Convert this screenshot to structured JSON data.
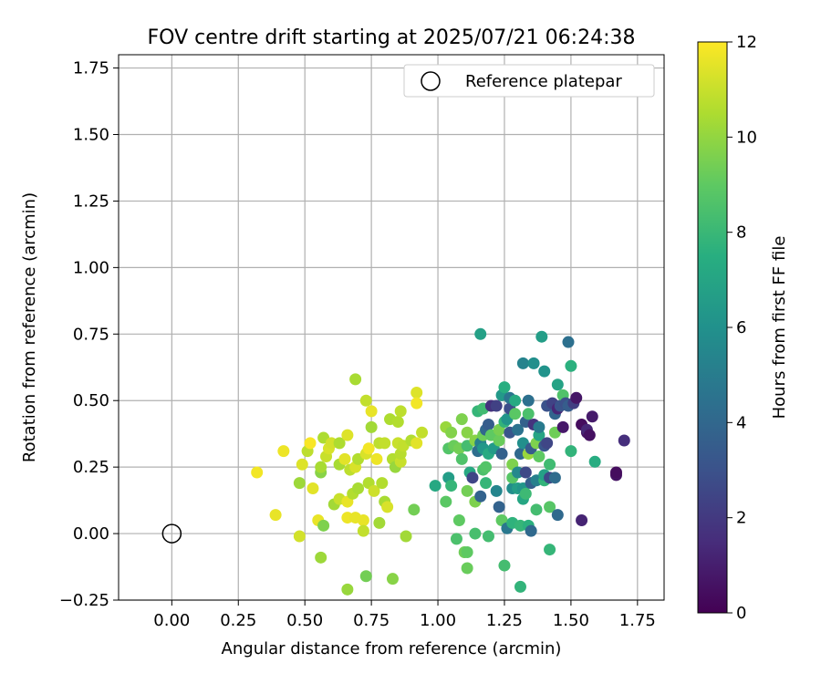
{
  "chart_data": {
    "type": "scatter",
    "title": "FOV centre drift starting at 2025/07/21 06:24:38",
    "xlabel": "Angular distance from reference (arcmin)",
    "ylabel": "Rotation from reference (arcmin)",
    "xlim": [
      -0.2,
      1.85
    ],
    "ylim": [
      -0.25,
      1.8
    ],
    "xticks": [
      "0.00",
      "0.25",
      "0.50",
      "0.75",
      "1.00",
      "1.25",
      "1.50",
      "1.75"
    ],
    "yticks": [
      "-0.25",
      "0.00",
      "0.25",
      "0.50",
      "0.75",
      "1.00",
      "1.25",
      "1.50",
      "1.75"
    ],
    "grid": true,
    "legend": {
      "position": "top-right",
      "label": "Reference platepar"
    },
    "reference_point": {
      "x": 0.0,
      "y": 0.0
    },
    "colorbar": {
      "label": "Hours from first FF file",
      "min": 0,
      "max": 12,
      "ticks": [
        "0",
        "2",
        "4",
        "6",
        "8",
        "10",
        "12"
      ],
      "colormap": "viridis"
    },
    "points": [
      {
        "x": 0.32,
        "y": 0.23,
        "c": 11.8
      },
      {
        "x": 0.39,
        "y": 0.07,
        "c": 11.6
      },
      {
        "x": 0.42,
        "y": 0.31,
        "c": 11.7
      },
      {
        "x": 0.48,
        "y": -0.01,
        "c": 11.2
      },
      {
        "x": 0.48,
        "y": 0.19,
        "c": 10.2
      },
      {
        "x": 0.49,
        "y": 0.26,
        "c": 11.4
      },
      {
        "x": 0.51,
        "y": 0.31,
        "c": 10.8
      },
      {
        "x": 0.52,
        "y": 0.34,
        "c": 11.9
      },
      {
        "x": 0.53,
        "y": 0.17,
        "c": 11.5
      },
      {
        "x": 0.55,
        "y": 0.05,
        "c": 11.6
      },
      {
        "x": 0.56,
        "y": 0.23,
        "c": 9.8
      },
      {
        "x": 0.56,
        "y": 0.25,
        "c": 10.4
      },
      {
        "x": 0.56,
        "y": -0.09,
        "c": 10.2
      },
      {
        "x": 0.57,
        "y": 0.36,
        "c": 10.5
      },
      {
        "x": 0.57,
        "y": 0.03,
        "c": 9.6
      },
      {
        "x": 0.58,
        "y": 0.29,
        "c": 11.0
      },
      {
        "x": 0.59,
        "y": 0.32,
        "c": 11.3
      },
      {
        "x": 0.6,
        "y": 0.34,
        "c": 11.2
      },
      {
        "x": 0.61,
        "y": 0.11,
        "c": 10.3
      },
      {
        "x": 0.63,
        "y": 0.34,
        "c": 10.5
      },
      {
        "x": 0.63,
        "y": 0.26,
        "c": 10.4
      },
      {
        "x": 0.63,
        "y": 0.13,
        "c": 11.0
      },
      {
        "x": 0.65,
        "y": 0.28,
        "c": 11.5
      },
      {
        "x": 0.66,
        "y": 0.37,
        "c": 11.4
      },
      {
        "x": 0.66,
        "y": 0.12,
        "c": 11.6
      },
      {
        "x": 0.66,
        "y": 0.06,
        "c": 11.7
      },
      {
        "x": 0.66,
        "y": -0.21,
        "c": 10.1
      },
      {
        "x": 0.67,
        "y": 0.24,
        "c": 10.8
      },
      {
        "x": 0.68,
        "y": 0.15,
        "c": 10.6
      },
      {
        "x": 0.69,
        "y": 0.06,
        "c": 11.6
      },
      {
        "x": 0.69,
        "y": 0.58,
        "c": 10.4
      },
      {
        "x": 0.69,
        "y": 0.25,
        "c": 11.3
      },
      {
        "x": 0.7,
        "y": 0.28,
        "c": 10.6
      },
      {
        "x": 0.7,
        "y": 0.17,
        "c": 10.4
      },
      {
        "x": 0.72,
        "y": 0.05,
        "c": 11.6
      },
      {
        "x": 0.72,
        "y": 0.01,
        "c": 10.9
      },
      {
        "x": 0.73,
        "y": 0.3,
        "c": 11.3
      },
      {
        "x": 0.73,
        "y": 0.5,
        "c": 10.9
      },
      {
        "x": 0.73,
        "y": -0.16,
        "c": 9.4
      },
      {
        "x": 0.74,
        "y": 0.32,
        "c": 11.8
      },
      {
        "x": 0.74,
        "y": 0.19,
        "c": 10.6
      },
      {
        "x": 0.75,
        "y": 0.4,
        "c": 10.3
      },
      {
        "x": 0.75,
        "y": 0.46,
        "c": 11.6
      },
      {
        "x": 0.76,
        "y": 0.16,
        "c": 11.1
      },
      {
        "x": 0.77,
        "y": 0.28,
        "c": 11.7
      },
      {
        "x": 0.78,
        "y": 0.04,
        "c": 10.3
      },
      {
        "x": 0.78,
        "y": 0.34,
        "c": 10.8
      },
      {
        "x": 0.79,
        "y": 0.19,
        "c": 10.6
      },
      {
        "x": 0.8,
        "y": 0.12,
        "c": 10.4
      },
      {
        "x": 0.8,
        "y": 0.34,
        "c": 10.9
      },
      {
        "x": 0.81,
        "y": 0.1,
        "c": 11.3
      },
      {
        "x": 0.82,
        "y": 0.43,
        "c": 10.5
      },
      {
        "x": 0.83,
        "y": 0.28,
        "c": 10.6
      },
      {
        "x": 0.83,
        "y": -0.17,
        "c": 9.8
      },
      {
        "x": 0.84,
        "y": 0.25,
        "c": 10.1
      },
      {
        "x": 0.85,
        "y": 0.34,
        "c": 11.0
      },
      {
        "x": 0.85,
        "y": 0.42,
        "c": 10.6
      },
      {
        "x": 0.86,
        "y": 0.46,
        "c": 10.8
      },
      {
        "x": 0.86,
        "y": 0.27,
        "c": 11.0
      },
      {
        "x": 0.86,
        "y": 0.3,
        "c": 10.7
      },
      {
        "x": 0.87,
        "y": 0.33,
        "c": 10.9
      },
      {
        "x": 0.88,
        "y": -0.01,
        "c": 10.3
      },
      {
        "x": 0.9,
        "y": 0.35,
        "c": 10.6
      },
      {
        "x": 0.91,
        "y": 0.09,
        "c": 9.4
      },
      {
        "x": 0.92,
        "y": 0.53,
        "c": 11.4
      },
      {
        "x": 0.92,
        "y": 0.49,
        "c": 11.8
      },
      {
        "x": 0.92,
        "y": 0.34,
        "c": 11.5
      },
      {
        "x": 0.94,
        "y": 0.38,
        "c": 10.9
      },
      {
        "x": 0.99,
        "y": 0.18,
        "c": 7.2
      },
      {
        "x": 1.03,
        "y": 0.4,
        "c": 10.1
      },
      {
        "x": 1.03,
        "y": 0.12,
        "c": 8.9
      },
      {
        "x": 1.04,
        "y": 0.21,
        "c": 6.6
      },
      {
        "x": 1.04,
        "y": 0.32,
        "c": 8.7
      },
      {
        "x": 1.05,
        "y": 0.38,
        "c": 9.7
      },
      {
        "x": 1.05,
        "y": 0.18,
        "c": 7.9
      },
      {
        "x": 1.06,
        "y": 0.33,
        "c": 9.2
      },
      {
        "x": 1.07,
        "y": -0.02,
        "c": 8.5
      },
      {
        "x": 1.08,
        "y": 0.32,
        "c": 9.4
      },
      {
        "x": 1.08,
        "y": 0.05,
        "c": 9.0
      },
      {
        "x": 1.09,
        "y": 0.43,
        "c": 9.6
      },
      {
        "x": 1.09,
        "y": 0.28,
        "c": 8.6
      },
      {
        "x": 1.1,
        "y": -0.07,
        "c": 9.3
      },
      {
        "x": 1.11,
        "y": 0.33,
        "c": 8.3
      },
      {
        "x": 1.11,
        "y": -0.13,
        "c": 9.2
      },
      {
        "x": 1.11,
        "y": 0.16,
        "c": 9.4
      },
      {
        "x": 1.11,
        "y": 0.38,
        "c": 9.8
      },
      {
        "x": 1.11,
        "y": -0.07,
        "c": 9.0
      },
      {
        "x": 1.12,
        "y": 0.23,
        "c": 7.2
      },
      {
        "x": 1.13,
        "y": 0.21,
        "c": 2.5
      },
      {
        "x": 1.14,
        "y": 0.35,
        "c": 9.8
      },
      {
        "x": 1.14,
        "y": 0.0,
        "c": 8.4
      },
      {
        "x": 1.14,
        "y": 0.12,
        "c": 9.6
      },
      {
        "x": 1.15,
        "y": 0.31,
        "c": 4.3
      },
      {
        "x": 1.15,
        "y": 0.46,
        "c": 7.9
      },
      {
        "x": 1.16,
        "y": 0.75,
        "c": 6.8
      },
      {
        "x": 1.16,
        "y": 0.14,
        "c": 3.8
      },
      {
        "x": 1.16,
        "y": 0.34,
        "c": 5.2
      },
      {
        "x": 1.17,
        "y": 0.24,
        "c": 8.5
      },
      {
        "x": 1.17,
        "y": 0.47,
        "c": 8.2
      },
      {
        "x": 1.17,
        "y": 0.37,
        "c": 9.3
      },
      {
        "x": 1.17,
        "y": 0.32,
        "c": 6.3
      },
      {
        "x": 1.18,
        "y": 0.39,
        "c": 4.0
      },
      {
        "x": 1.18,
        "y": 0.25,
        "c": 8.7
      },
      {
        "x": 1.18,
        "y": 0.19,
        "c": 7.9
      },
      {
        "x": 1.19,
        "y": 0.41,
        "c": 3.5
      },
      {
        "x": 1.19,
        "y": 0.3,
        "c": 7.3
      },
      {
        "x": 1.19,
        "y": -0.01,
        "c": 8.3
      },
      {
        "x": 1.2,
        "y": 0.48,
        "c": 1.7
      },
      {
        "x": 1.2,
        "y": 0.37,
        "c": 9.0
      },
      {
        "x": 1.21,
        "y": 0.32,
        "c": 6.5
      },
      {
        "x": 1.22,
        "y": 0.16,
        "c": 5.4
      },
      {
        "x": 1.22,
        "y": 0.48,
        "c": 2.3
      },
      {
        "x": 1.23,
        "y": 0.1,
        "c": 3.8
      },
      {
        "x": 1.23,
        "y": 0.35,
        "c": 9.2
      },
      {
        "x": 1.23,
        "y": 0.39,
        "c": 9.5
      },
      {
        "x": 1.24,
        "y": 0.05,
        "c": 9.0
      },
      {
        "x": 1.24,
        "y": 0.3,
        "c": 3.7
      },
      {
        "x": 1.24,
        "y": 0.52,
        "c": 6.4
      },
      {
        "x": 1.25,
        "y": 0.55,
        "c": 7.5
      },
      {
        "x": 1.25,
        "y": 0.42,
        "c": 7.8
      },
      {
        "x": 1.25,
        "y": -0.12,
        "c": 8.3
      },
      {
        "x": 1.26,
        "y": 0.43,
        "c": 6.2
      },
      {
        "x": 1.26,
        "y": 0.02,
        "c": 4.8
      },
      {
        "x": 1.27,
        "y": 0.38,
        "c": 3.2
      },
      {
        "x": 1.27,
        "y": 0.47,
        "c": 2.8
      },
      {
        "x": 1.27,
        "y": 0.51,
        "c": 4.6
      },
      {
        "x": 1.28,
        "y": 0.17,
        "c": 5.8
      },
      {
        "x": 1.28,
        "y": 0.26,
        "c": 9.6
      },
      {
        "x": 1.28,
        "y": 0.21,
        "c": 8.8
      },
      {
        "x": 1.28,
        "y": 0.04,
        "c": 7.7
      },
      {
        "x": 1.29,
        "y": 0.5,
        "c": 7.3
      },
      {
        "x": 1.29,
        "y": 0.45,
        "c": 8.9
      },
      {
        "x": 1.3,
        "y": 0.39,
        "c": 4.5
      },
      {
        "x": 1.3,
        "y": 0.17,
        "c": 6.6
      },
      {
        "x": 1.3,
        "y": 0.23,
        "c": 5.6
      },
      {
        "x": 1.31,
        "y": 0.03,
        "c": 7.9
      },
      {
        "x": 1.31,
        "y": 0.3,
        "c": 4.1
      },
      {
        "x": 1.31,
        "y": -0.2,
        "c": 7.8
      },
      {
        "x": 1.32,
        "y": 0.64,
        "c": 5.3
      },
      {
        "x": 1.32,
        "y": 0.34,
        "c": 5.9
      },
      {
        "x": 1.32,
        "y": 0.17,
        "c": 6.2
      },
      {
        "x": 1.32,
        "y": 0.13,
        "c": 7.1
      },
      {
        "x": 1.33,
        "y": 0.42,
        "c": 3.7
      },
      {
        "x": 1.33,
        "y": 0.23,
        "c": 2.6
      },
      {
        "x": 1.33,
        "y": 0.15,
        "c": 8.1
      },
      {
        "x": 1.34,
        "y": 0.5,
        "c": 4.4
      },
      {
        "x": 1.34,
        "y": 0.45,
        "c": 8.5
      },
      {
        "x": 1.34,
        "y": 0.3,
        "c": 10.1
      },
      {
        "x": 1.34,
        "y": 0.03,
        "c": 7.6
      },
      {
        "x": 1.35,
        "y": 0.01,
        "c": 4.1
      },
      {
        "x": 1.35,
        "y": 0.19,
        "c": 3.6
      },
      {
        "x": 1.35,
        "y": 0.32,
        "c": 3.4
      },
      {
        "x": 1.36,
        "y": 0.64,
        "c": 5.9
      },
      {
        "x": 1.36,
        "y": 0.41,
        "c": 1.8
      },
      {
        "x": 1.37,
        "y": 0.34,
        "c": 9.6
      },
      {
        "x": 1.37,
        "y": 0.2,
        "c": 5.2
      },
      {
        "x": 1.37,
        "y": 0.09,
        "c": 8.3
      },
      {
        "x": 1.38,
        "y": 0.37,
        "c": 7.0
      },
      {
        "x": 1.38,
        "y": 0.29,
        "c": 9.0
      },
      {
        "x": 1.38,
        "y": 0.4,
        "c": 4.9
      },
      {
        "x": 1.39,
        "y": 0.74,
        "c": 6.6
      },
      {
        "x": 1.4,
        "y": 0.33,
        "c": 3.2
      },
      {
        "x": 1.4,
        "y": 0.61,
        "c": 6.1
      },
      {
        "x": 1.4,
        "y": 0.2,
        "c": 7.8
      },
      {
        "x": 1.4,
        "y": 0.22,
        "c": 6.8
      },
      {
        "x": 1.41,
        "y": 0.34,
        "c": 2.5
      },
      {
        "x": 1.41,
        "y": 0.48,
        "c": 3.0
      },
      {
        "x": 1.42,
        "y": 0.21,
        "c": 2.6
      },
      {
        "x": 1.42,
        "y": 0.26,
        "c": 8.2
      },
      {
        "x": 1.42,
        "y": -0.06,
        "c": 7.9
      },
      {
        "x": 1.42,
        "y": 0.1,
        "c": 8.8
      },
      {
        "x": 1.43,
        "y": 0.49,
        "c": 2.4
      },
      {
        "x": 1.44,
        "y": 0.45,
        "c": 3.9
      },
      {
        "x": 1.44,
        "y": 0.21,
        "c": 4.2
      },
      {
        "x": 1.44,
        "y": 0.38,
        "c": 9.3
      },
      {
        "x": 1.45,
        "y": 0.47,
        "c": 1.3
      },
      {
        "x": 1.45,
        "y": 0.56,
        "c": 6.9
      },
      {
        "x": 1.45,
        "y": 0.07,
        "c": 4.1
      },
      {
        "x": 1.46,
        "y": 0.48,
        "c": 3.1
      },
      {
        "x": 1.47,
        "y": 0.52,
        "c": 8.6
      },
      {
        "x": 1.47,
        "y": 0.4,
        "c": 0.8
      },
      {
        "x": 1.48,
        "y": 0.49,
        "c": 2.9
      },
      {
        "x": 1.49,
        "y": 0.72,
        "c": 4.4
      },
      {
        "x": 1.49,
        "y": 0.48,
        "c": 3.5
      },
      {
        "x": 1.5,
        "y": 0.63,
        "c": 7.6
      },
      {
        "x": 1.5,
        "y": 0.31,
        "c": 7.8
      },
      {
        "x": 1.51,
        "y": 0.49,
        "c": 2.2
      },
      {
        "x": 1.52,
        "y": 0.51,
        "c": 0.7
      },
      {
        "x": 1.54,
        "y": 0.05,
        "c": 1.2
      },
      {
        "x": 1.54,
        "y": 0.41,
        "c": 0.4
      },
      {
        "x": 1.56,
        "y": 0.38,
        "c": 0.6
      },
      {
        "x": 1.56,
        "y": 0.39,
        "c": 1.3
      },
      {
        "x": 1.57,
        "y": 0.37,
        "c": 0.5
      },
      {
        "x": 1.58,
        "y": 0.44,
        "c": 0.9
      },
      {
        "x": 1.59,
        "y": 0.27,
        "c": 7.4
      },
      {
        "x": 1.67,
        "y": 0.22,
        "c": 0.6
      },
      {
        "x": 1.67,
        "y": 0.23,
        "c": 0.4
      },
      {
        "x": 1.7,
        "y": 0.35,
        "c": 1.6
      }
    ]
  }
}
